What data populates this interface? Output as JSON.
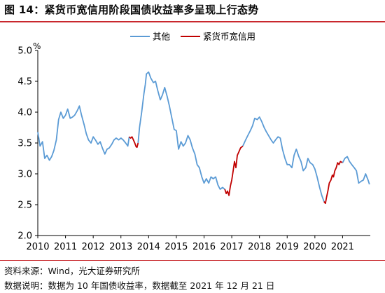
{
  "title": "图 14：紧货币宽信用阶段国债收益率多呈现上行态势",
  "source": "资料来源：Wind，光大证券研究所",
  "note": "数据说明：数据为 10 年国债收益率，数据截至 2021 年 12 月 21 日",
  "colors": {
    "other": "#5b9bd5",
    "tight": "#c00000",
    "accent": "#c9282d"
  },
  "chart_data": {
    "type": "line",
    "title": "",
    "xlabel": "",
    "ylabel": "%",
    "ylim": [
      2.0,
      5.0
    ],
    "yticks": [
      "2.0",
      "2.5",
      "3.0",
      "3.5",
      "4.0",
      "4.5",
      "5.0"
    ],
    "xlim": [
      2010,
      2022
    ],
    "xticks": [
      "2010",
      "2011",
      "2012",
      "2013",
      "2014",
      "2015",
      "2016",
      "2017",
      "2018",
      "2019",
      "2020",
      "2021"
    ],
    "legend": {
      "position": "top-center",
      "entries": [
        "其他",
        "紧货币宽信用"
      ]
    },
    "series": [
      {
        "name": "其他",
        "color": "#5b9bd5",
        "x": [
          2010.0,
          2010.08,
          2010.17,
          2010.25,
          2010.33,
          2010.42,
          2010.5,
          2010.58,
          2010.67,
          2010.75,
          2010.83,
          2010.92,
          2011.0,
          2011.08,
          2011.17,
          2011.25,
          2011.33,
          2011.42,
          2011.5,
          2011.58,
          2011.67,
          2011.75,
          2011.83,
          2011.92,
          2012.0,
          2012.08,
          2012.17,
          2012.25,
          2012.33,
          2012.42,
          2012.5,
          2012.58,
          2012.67,
          2012.75,
          2012.83,
          2012.92,
          2013.0,
          2013.08,
          2013.17,
          2013.25,
          2013.3
        ],
        "y": [
          3.68,
          3.45,
          3.52,
          3.25,
          3.3,
          3.22,
          3.28,
          3.38,
          3.55,
          3.88,
          4.0,
          3.9,
          3.95,
          4.05,
          3.9,
          3.92,
          3.95,
          4.02,
          4.1,
          3.95,
          3.8,
          3.65,
          3.55,
          3.5,
          3.6,
          3.55,
          3.48,
          3.52,
          3.42,
          3.32,
          3.4,
          3.42,
          3.48,
          3.55,
          3.58,
          3.55,
          3.58,
          3.55,
          3.5,
          3.45,
          3.6
        ]
      },
      {
        "name": "紧货币宽信用",
        "color": "#c00000",
        "x": [
          2013.3,
          2013.35,
          2013.4,
          2013.45,
          2013.5,
          2013.55,
          2013.58,
          2013.62
        ],
        "y": [
          3.6,
          3.58,
          3.6,
          3.55,
          3.5,
          3.44,
          3.43,
          3.5
        ]
      },
      {
        "name": "其他",
        "color": "#5b9bd5",
        "x": [
          2013.62,
          2013.67,
          2013.75,
          2013.83,
          2013.88,
          2013.92,
          2014.0,
          2014.08,
          2014.17,
          2014.25,
          2014.33,
          2014.42,
          2014.5,
          2014.58,
          2014.67,
          2014.75,
          2014.83,
          2014.92,
          2015.0,
          2015.08,
          2015.17,
          2015.25,
          2015.33,
          2015.42,
          2015.5,
          2015.58,
          2015.67,
          2015.75,
          2015.83,
          2015.92,
          2016.0,
          2016.08,
          2016.17,
          2016.25,
          2016.33,
          2016.42,
          2016.5,
          2016.58,
          2016.67,
          2016.75
        ],
        "y": [
          3.5,
          3.75,
          4.0,
          4.3,
          4.45,
          4.62,
          4.65,
          4.55,
          4.48,
          4.5,
          4.35,
          4.2,
          4.28,
          4.4,
          4.25,
          4.1,
          3.92,
          3.72,
          3.7,
          3.4,
          3.52,
          3.45,
          3.5,
          3.62,
          3.55,
          3.42,
          3.32,
          3.15,
          3.1,
          2.95,
          2.85,
          2.92,
          2.85,
          2.95,
          2.92,
          2.95,
          2.82,
          2.75,
          2.78,
          2.75
        ]
      },
      {
        "name": "紧货币宽信用",
        "color": "#c00000",
        "x": [
          2016.75,
          2016.8,
          2016.85,
          2016.9,
          2016.95,
          2017.0,
          2017.05,
          2017.1,
          2017.15,
          2017.2,
          2017.25,
          2017.32,
          2017.4
        ],
        "y": [
          2.75,
          2.68,
          2.72,
          2.65,
          2.8,
          2.9,
          3.05,
          3.2,
          3.1,
          3.3,
          3.35,
          3.42,
          3.45
        ]
      },
      {
        "name": "其他",
        "color": "#5b9bd5",
        "x": [
          2017.4,
          2017.5,
          2017.58,
          2017.67,
          2017.75,
          2017.83,
          2017.92,
          2018.0,
          2018.08,
          2018.17,
          2018.25,
          2018.33,
          2018.42,
          2018.5,
          2018.58,
          2018.67,
          2018.75,
          2018.83,
          2018.92,
          2019.0,
          2019.08,
          2019.17,
          2019.25,
          2019.33,
          2019.42,
          2019.5,
          2019.58,
          2019.67,
          2019.75,
          2019.83,
          2019.92,
          2020.0,
          2020.08,
          2020.17,
          2020.25,
          2020.33
        ],
        "y": [
          3.45,
          3.55,
          3.62,
          3.7,
          3.78,
          3.9,
          3.88,
          3.92,
          3.85,
          3.75,
          3.68,
          3.62,
          3.55,
          3.5,
          3.55,
          3.6,
          3.58,
          3.4,
          3.25,
          3.15,
          3.15,
          3.1,
          3.3,
          3.4,
          3.28,
          3.2,
          3.05,
          3.1,
          3.25,
          3.18,
          3.15,
          3.08,
          2.95,
          2.78,
          2.65,
          2.55
        ]
      },
      {
        "name": "紧货币宽信用",
        "color": "#c00000",
        "x": [
          2020.33,
          2020.38,
          2020.42,
          2020.47,
          2020.52,
          2020.58,
          2020.63,
          2020.67,
          2020.72,
          2020.77,
          2020.82,
          2020.87,
          2020.92,
          2021.0
        ],
        "y": [
          2.55,
          2.52,
          2.62,
          2.72,
          2.85,
          2.9,
          2.98,
          2.95,
          3.05,
          3.1,
          3.18,
          3.15,
          3.2,
          3.18
        ]
      },
      {
        "name": "其他",
        "color": "#5b9bd5",
        "x": [
          2021.0,
          2021.08,
          2021.17,
          2021.25,
          2021.33,
          2021.42,
          2021.5,
          2021.58,
          2021.67,
          2021.75,
          2021.83,
          2021.92,
          2021.97
        ],
        "y": [
          3.18,
          3.25,
          3.28,
          3.2,
          3.15,
          3.1,
          3.05,
          2.85,
          2.88,
          2.9,
          3.0,
          2.9,
          2.83
        ]
      }
    ]
  }
}
